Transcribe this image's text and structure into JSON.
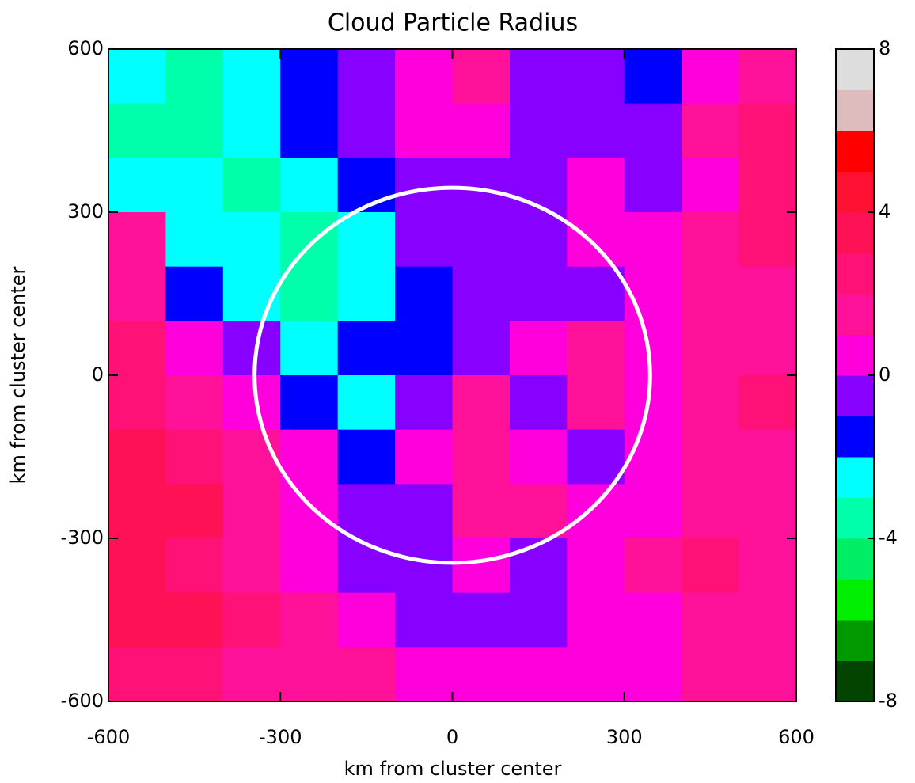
{
  "chart_data": {
    "type": "heatmap",
    "title": "Cloud Particle Radius",
    "xlabel": "km from cluster center",
    "ylabel": "km from cluster center",
    "xlim": [
      -600,
      600
    ],
    "ylim": [
      -600,
      600
    ],
    "xticks": [
      -600,
      -300,
      0,
      300,
      600
    ],
    "yticks": [
      -600,
      -300,
      0,
      300,
      600
    ],
    "x": [
      -550,
      -450,
      -350,
      -250,
      -150,
      -50,
      50,
      150,
      250,
      350,
      450,
      550
    ],
    "y": [
      550,
      450,
      350,
      250,
      150,
      50,
      -50,
      -150,
      -250,
      -350,
      -450,
      -550
    ],
    "z": [
      [
        -3,
        -4,
        -3,
        -2,
        -1,
        0,
        1,
        -1,
        -1,
        -2,
        0,
        1
      ],
      [
        -4,
        -4,
        -3,
        -2,
        -1,
        0,
        0,
        -1,
        -1,
        -1,
        1,
        2
      ],
      [
        -3,
        -3,
        -4,
        -3,
        -2,
        -1,
        -1,
        -1,
        0,
        -1,
        0,
        2
      ],
      [
        1,
        -3,
        -3,
        -4,
        -3,
        -1,
        -1,
        -1,
        0,
        0,
        1,
        2
      ],
      [
        1,
        -2,
        -3,
        -4,
        -3,
        -2,
        -1,
        -1,
        -1,
        0,
        1,
        1
      ],
      [
        2,
        0,
        -1,
        -3,
        -2,
        -2,
        -1,
        0,
        1,
        0,
        1,
        1
      ],
      [
        2,
        1,
        0,
        -2,
        -3,
        -1,
        1,
        -1,
        1,
        0,
        1,
        2
      ],
      [
        3,
        2,
        1,
        0,
        -2,
        0,
        1,
        0,
        -1,
        0,
        1,
        1
      ],
      [
        3,
        3,
        1,
        0,
        -1,
        -1,
        1,
        1,
        0,
        0,
        1,
        1
      ],
      [
        3,
        2,
        1,
        0,
        -1,
        -1,
        0,
        -1,
        0,
        1,
        2,
        1
      ],
      [
        3,
        3,
        2,
        1,
        0,
        -1,
        -1,
        -1,
        0,
        0,
        1,
        1
      ],
      [
        2,
        2,
        1,
        1,
        1,
        0,
        0,
        0,
        0,
        0,
        1,
        1
      ]
    ],
    "levels": [
      -8,
      -7,
      -6,
      -5,
      -4,
      -3,
      -2,
      -1,
      0,
      1,
      2,
      3,
      4,
      5,
      6,
      7,
      8
    ],
    "colors": [
      "#004400",
      "#009900",
      "#00ee00",
      "#00ee66",
      "#00ffaa",
      "#00ffff",
      "#0000ff",
      "#8800ff",
      "#ff00dd",
      "#ff1199",
      "#ff1177",
      "#ff1155",
      "#ff1133",
      "#ff0000",
      "#dcbcbc",
      "#dddddd",
      "#ffffff"
    ],
    "cbticks": [
      -8,
      -4,
      0,
      4,
      8
    ],
    "circle": {
      "x": 0,
      "y": 0,
      "r": 345,
      "color": "#ffffff"
    }
  }
}
